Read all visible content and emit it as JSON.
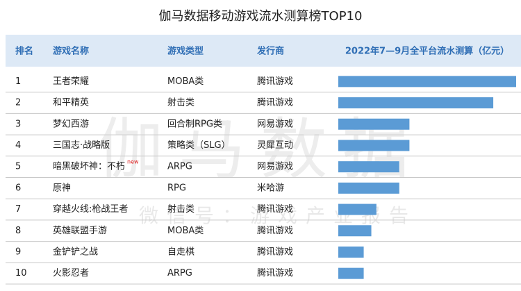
{
  "title": "伽马数据移动游戏流水测算榜TOP10",
  "headers": [
    "排名",
    "游戏名称",
    "游戏类型",
    "发行商",
    "2022年7—9月全平台流水测算（亿元）"
  ],
  "watermark": [
    "伽马数据",
    "微信号：游戏产业报告"
  ],
  "chart_data": {
    "type": "bar",
    "color": "#5b9bd5",
    "rows": [
      {
        "rank": 1,
        "name": "王者荣耀",
        "genre": "MOBA类",
        "publisher": "腾讯游戏",
        "value": 70
      },
      {
        "rank": 2,
        "name": "和平精英",
        "genre": "射击类",
        "publisher": "腾讯游戏",
        "value": 61
      },
      {
        "rank": 3,
        "name": "梦幻西游",
        "genre": "回合制RPG类",
        "publisher": "网易游戏",
        "value": 28
      },
      {
        "rank": 4,
        "name": "三国志·战略版",
        "genre": "策略类（SLG）",
        "publisher": "灵犀互动",
        "value": 28
      },
      {
        "rank": 5,
        "name": "暗黑破坏神：不朽",
        "badge": "new",
        "genre": "ARPG",
        "publisher": "网易游戏",
        "value": 24
      },
      {
        "rank": 6,
        "name": "原神",
        "genre": "RPG",
        "publisher": "米哈游",
        "value": 24
      },
      {
        "rank": 7,
        "name": "穿越火线:枪战王者",
        "genre": "射击类",
        "publisher": "腾讯游戏",
        "value": 15
      },
      {
        "rank": 8,
        "name": "英雄联盟手游",
        "genre": "MOBA类",
        "publisher": "腾讯游戏",
        "value": 13
      },
      {
        "rank": 9,
        "name": "金铲铲之战",
        "genre": "自走棋",
        "publisher": "腾讯游戏",
        "value": 10
      },
      {
        "rank": 10,
        "name": "火影忍者",
        "genre": "ARPG",
        "publisher": "腾讯游戏",
        "value": 10
      }
    ]
  }
}
